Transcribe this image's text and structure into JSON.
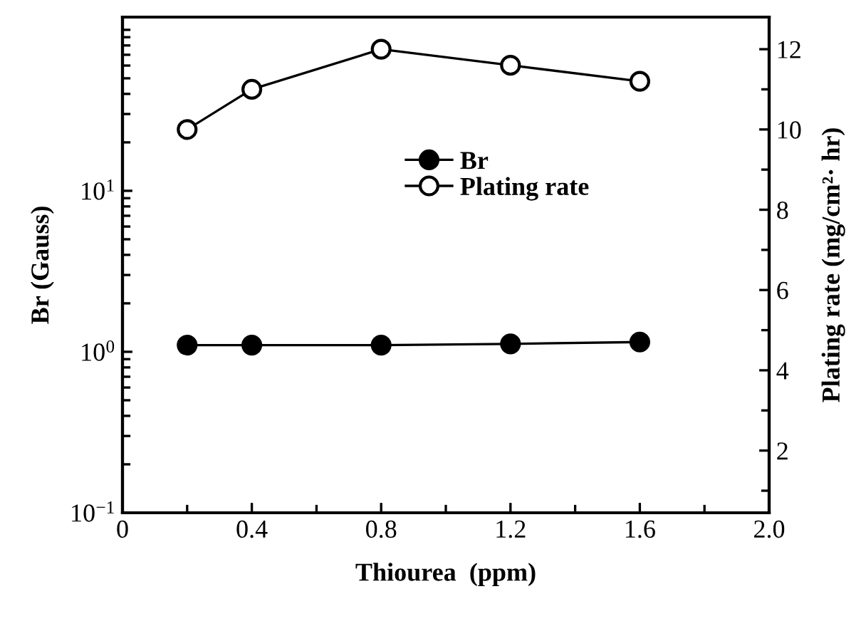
{
  "chart_data": {
    "type": "line",
    "xlabel": "Thiourea  (ppm)",
    "ylabel": "Br (Gauss)",
    "y2label": "Plating rate (mg/cm²· hr)",
    "x": [
      0.2,
      0.4,
      0.8,
      1.2,
      1.6
    ],
    "series": [
      {
        "name": "Br",
        "color": "#000000",
        "marker": "circle",
        "values": [
          1.1,
          1.1,
          1.1,
          1.12,
          1.15
        ]
      },
      {
        "name": "Plating rate",
        "color": "#000000",
        "marker": "circle",
        "axis": "y2",
        "values": [
          10.0,
          11.0,
          12.0,
          11.6,
          11.2
        ]
      }
    ],
    "log": "y",
    "xlim": [
      0,
      2.0
    ],
    "xticks": [
      0,
      0.4,
      0.8,
      1.2,
      1.6,
      {
        "value": 2.0,
        "label": "2.0"
      },
      {
        "value": 0.2,
        "label": null
      },
      {
        "value": 0.6,
        "label": null
      },
      {
        "value": 1.0,
        "label": null
      },
      {
        "value": 1.4,
        "label": null
      },
      {
        "value": 1.8,
        "label": null
      }
    ],
    "ylim": [
      0.1,
      120
    ],
    "yticks": [
      {
        "value": 0.1,
        "label": "10$^{−1}$"
      },
      {
        "value": 1,
        "label": "10$^{0}$"
      },
      {
        "value": 10,
        "label": "10$^{1}$"
      },
      {
        "value": 0.2,
        "label": null
      },
      {
        "value": 0.3,
        "label": null
      },
      {
        "value": 0.4,
        "label": null
      },
      {
        "value": 0.5,
        "label": null
      },
      {
        "value": 0.6,
        "label": null
      },
      {
        "value": 0.7,
        "label": null
      },
      {
        "value": 0.8,
        "label": null
      },
      {
        "value": 0.9,
        "label": null
      },
      {
        "value": 2,
        "label": null
      },
      {
        "value": 3,
        "label": null
      },
      {
        "value": 4,
        "label": null
      },
      {
        "value": 5,
        "label": null
      },
      {
        "value": 6,
        "label": null
      },
      {
        "value": 7,
        "label": null
      },
      {
        "value": 8,
        "label": null
      },
      {
        "value": 9,
        "label": null
      },
      {
        "value": 20,
        "label": null
      },
      {
        "value": 30,
        "label": null
      },
      {
        "value": 40,
        "label": null
      },
      {
        "value": 50,
        "label": null
      },
      {
        "value": 60,
        "label": null
      },
      {
        "value": 70,
        "label": null
      },
      {
        "value": 80,
        "label": null
      },
      {
        "value": 90,
        "label": null
      },
      {
        "value": 100,
        "label": null
      }
    ],
    "y2lim": [
      0.45,
      12.8
    ],
    "y2ticks": [
      2,
      4,
      6,
      8,
      10,
      12,
      {
        "value": 1,
        "label": null
      },
      {
        "value": 3,
        "label": null
      },
      {
        "value": 5,
        "label": null
      },
      {
        "value": 7,
        "label": null
      },
      {
        "value": 9,
        "label": null
      },
      {
        "value": 11,
        "label": null
      }
    ],
    "grid": false,
    "legend": "center",
    "line_style": "solid"
  }
}
